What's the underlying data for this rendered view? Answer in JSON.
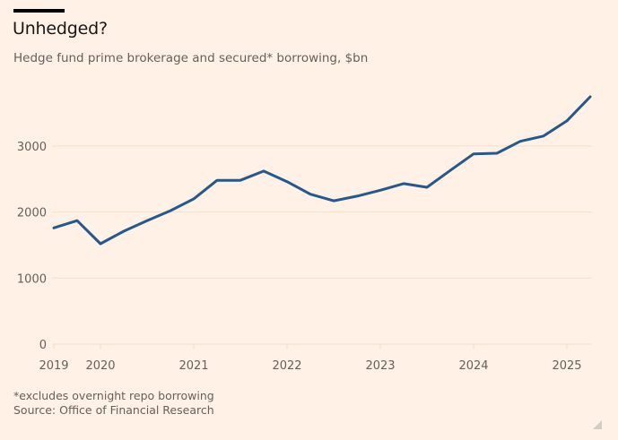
{
  "header": {
    "title": "Unhedged?",
    "subtitle": "Hedge fund prime brokerage and secured* borrowing, $bn"
  },
  "footer": {
    "footnote": "*excludes overnight repo borrowing",
    "source": "Source: Office of Financial Research"
  },
  "colors": {
    "background": "#fff1e5",
    "line": "#24588f",
    "grid": "#f2dfce",
    "text": "#66605c"
  },
  "chart_data": {
    "type": "line",
    "title": "Unhedged?",
    "subtitle": "Hedge fund prime brokerage and secured* borrowing, $bn",
    "xlabel": "",
    "ylabel": "",
    "ylim": [
      0,
      3800
    ],
    "xlim": [
      2019.5,
      2025.25
    ],
    "grid": true,
    "legend": "none",
    "yticks": [
      0,
      1000,
      2000,
      3000
    ],
    "ytick_labels": [
      "0",
      "1000",
      "2000",
      "3000"
    ],
    "xticks": [
      2019.5,
      2020,
      2021,
      2022,
      2023,
      2024,
      2025
    ],
    "xtick_labels": [
      "2019",
      "2020",
      "2021",
      "2022",
      "2023",
      "2024",
      "2025"
    ],
    "series": [
      {
        "name": "Prime brokerage and secured borrowing",
        "x": [
          2019.5,
          2019.75,
          2020,
          2020.25,
          2020.5,
          2020.75,
          2021,
          2021.25,
          2021.5,
          2021.75,
          2022,
          2022.25,
          2022.5,
          2022.75,
          2023,
          2023.25,
          2023.5,
          2023.75,
          2024,
          2024.25,
          2024.5,
          2024.75,
          2025,
          2025.25
        ],
        "values": [
          1760,
          1870,
          1520,
          1710,
          1870,
          2020,
          2200,
          2480,
          2480,
          2620,
          2460,
          2270,
          2170,
          2240,
          2330,
          2430,
          2375,
          2630,
          2880,
          2890,
          3070,
          3150,
          3380,
          3745
        ]
      }
    ]
  }
}
